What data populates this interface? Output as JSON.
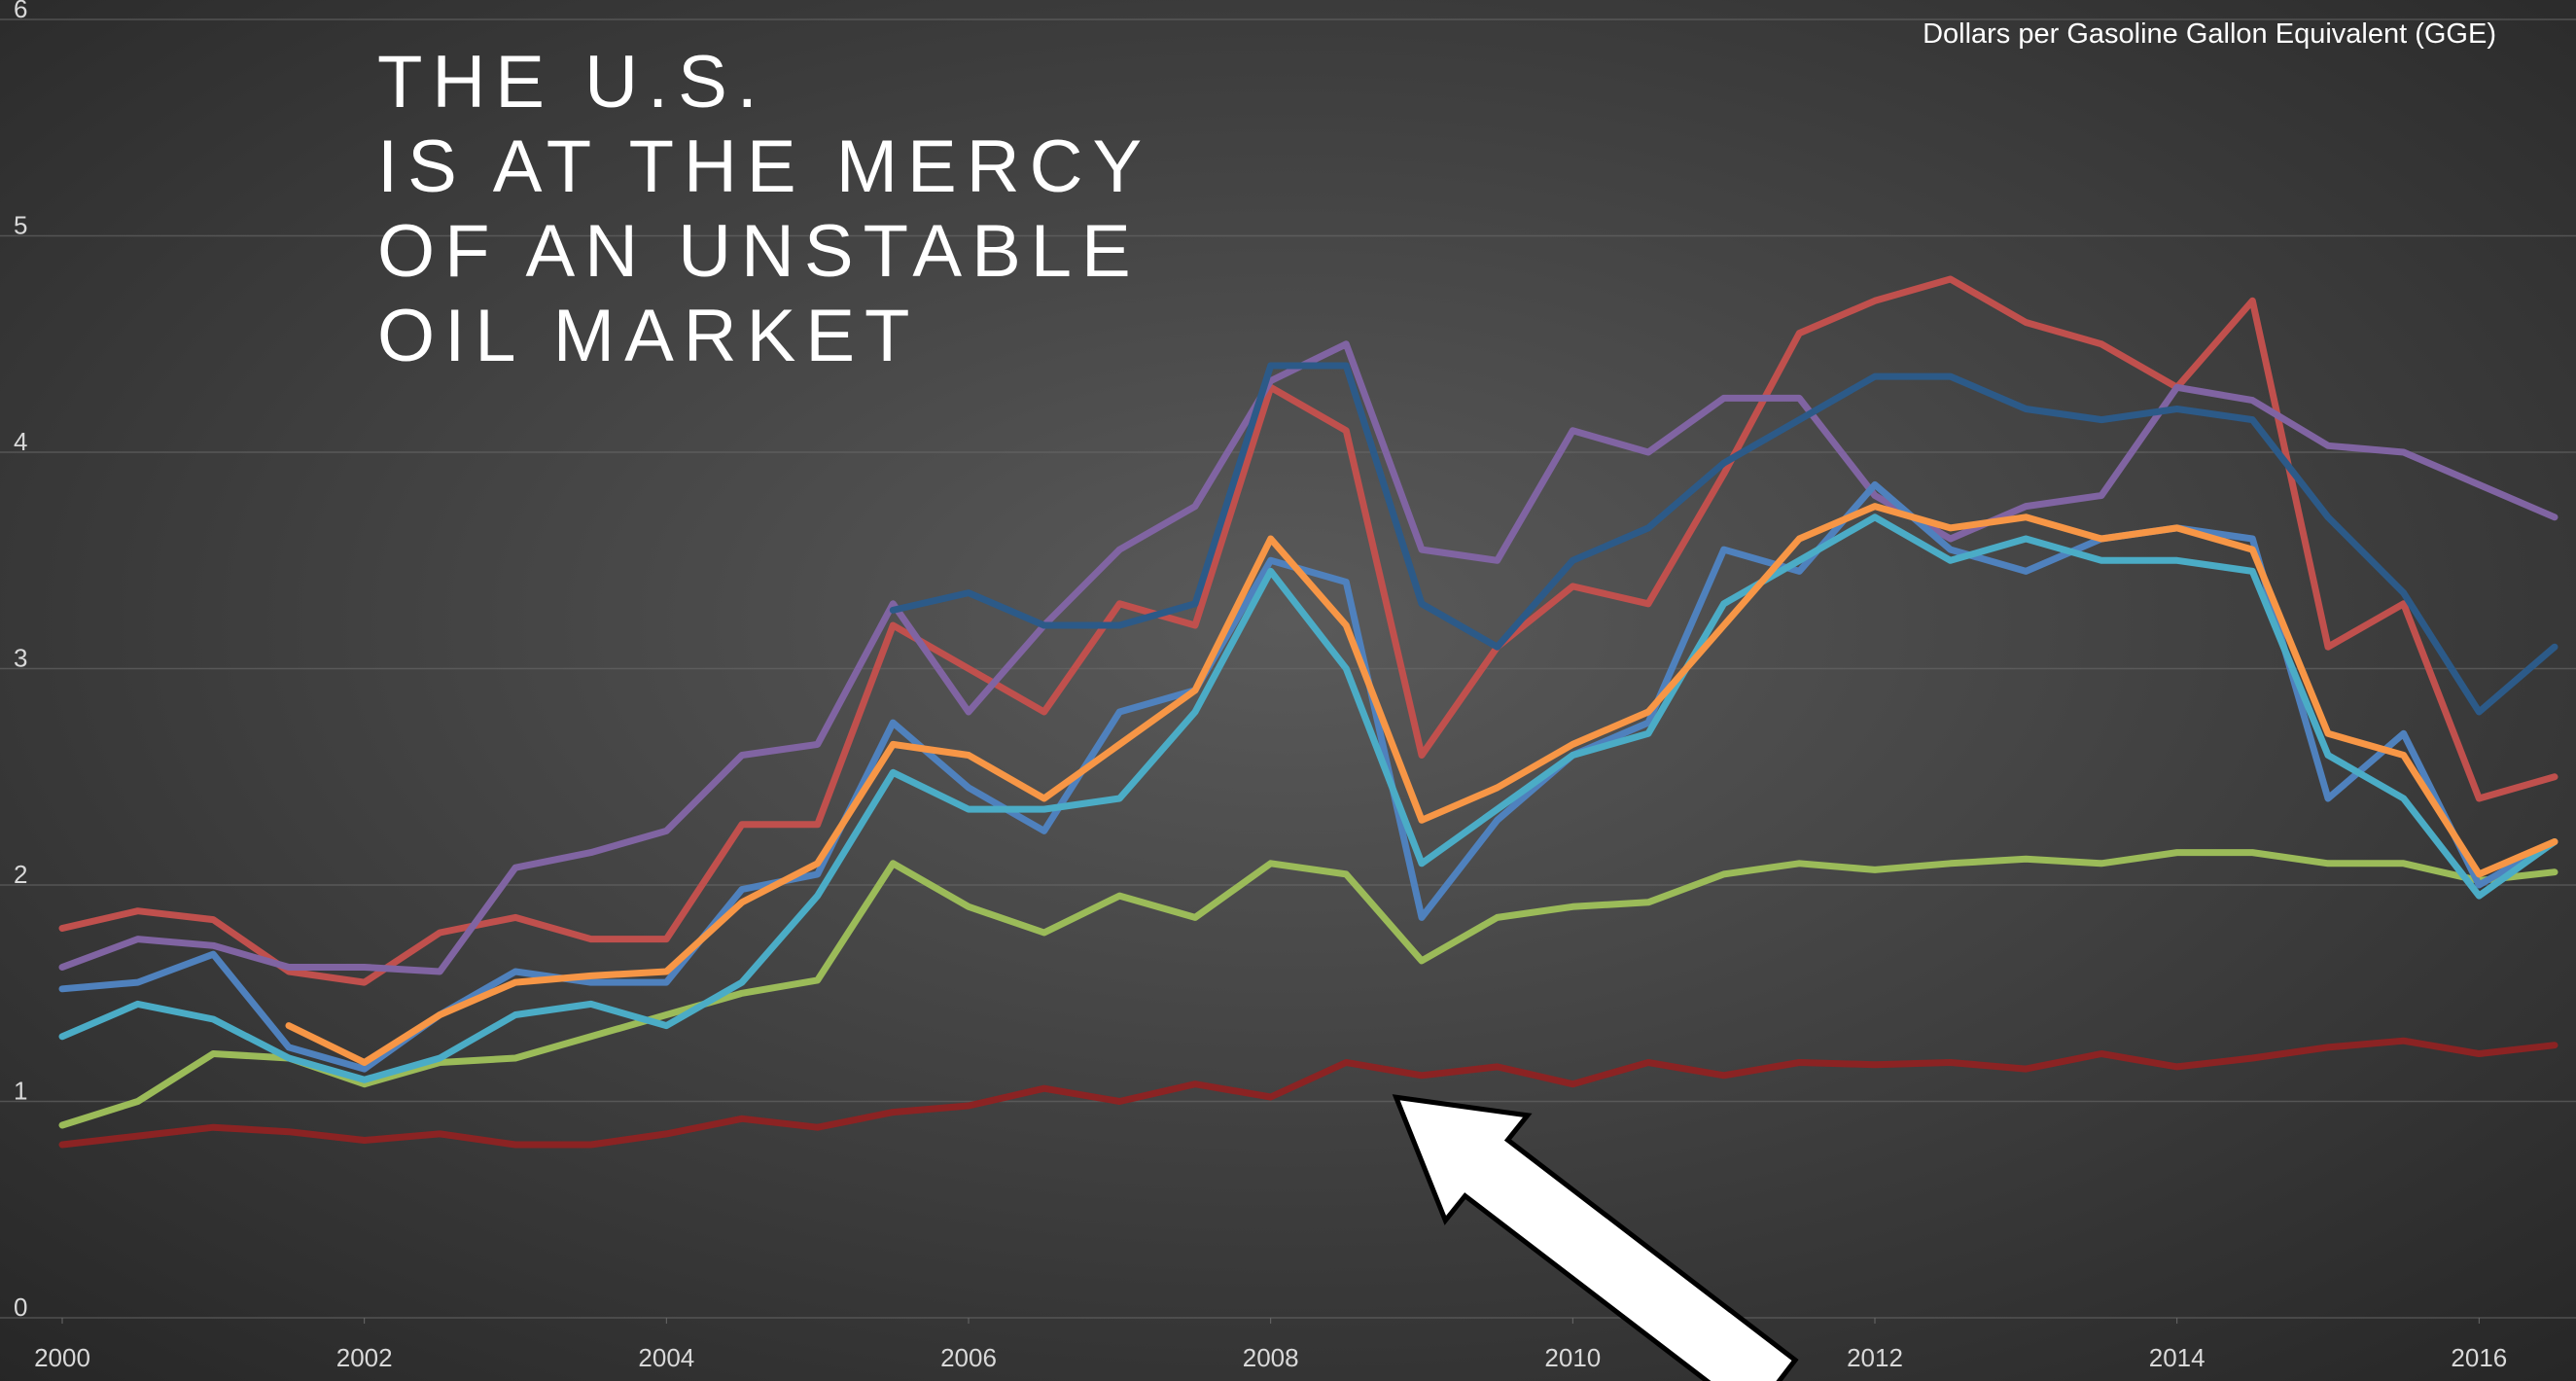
{
  "chart_data": {
    "type": "line",
    "title_lines": [
      "THE U.S.",
      "IS AT THE MERCY",
      "OF AN  UNSTABLE",
      "OIL MARKET"
    ],
    "subtitle": "Dollars per Gasoline Gallon Equivalent (GGE)",
    "x": [
      2000,
      2000.5,
      2001,
      2001.5,
      2002,
      2002.5,
      2003,
      2003.5,
      2004,
      2004.5,
      2005,
      2005.5,
      2006,
      2006.5,
      2007,
      2007.5,
      2008,
      2008.5,
      2009,
      2009.5,
      2010,
      2010.5,
      2011,
      2011.5,
      2012,
      2012.5,
      2013,
      2013.5,
      2014,
      2014.5,
      2015,
      2015.5,
      2016,
      2016.5
    ],
    "xlim": [
      2000,
      2016.5
    ],
    "xticks": [
      2000,
      2002,
      2004,
      2006,
      2008,
      2010,
      2012,
      2014,
      2016
    ],
    "ylim": [
      0,
      6
    ],
    "yticks": [
      0,
      1,
      2,
      3,
      4,
      5,
      6
    ],
    "grid": true,
    "series": [
      {
        "color": "#8b2323",
        "values": [
          0.8,
          0.84,
          0.88,
          0.86,
          0.82,
          0.85,
          0.8,
          0.8,
          0.85,
          0.92,
          0.88,
          0.95,
          0.98,
          1.06,
          1.0,
          1.08,
          1.02,
          1.18,
          1.12,
          1.16,
          1.08,
          1.18,
          1.12,
          1.18,
          1.17,
          1.18,
          1.15,
          1.22,
          1.16,
          1.2,
          1.25,
          1.28,
          1.22,
          1.26
        ]
      },
      {
        "color": "#9bbb59",
        "values": [
          0.89,
          1.0,
          1.22,
          1.2,
          1.08,
          1.18,
          1.2,
          1.3,
          1.4,
          1.5,
          1.56,
          2.1,
          1.9,
          1.78,
          1.95,
          1.85,
          2.1,
          2.05,
          1.65,
          1.85,
          1.9,
          1.92,
          2.05,
          2.1,
          2.07,
          2.1,
          2.12,
          2.1,
          2.15,
          2.15,
          2.1,
          2.1,
          2.02,
          2.06
        ]
      },
      {
        "color": "#c0504d",
        "values": [
          1.8,
          1.88,
          1.84,
          1.6,
          1.55,
          1.78,
          1.85,
          1.75,
          1.75,
          2.28,
          2.28,
          3.2,
          3.0,
          2.8,
          3.3,
          3.2,
          4.3,
          4.1,
          2.6,
          3.1,
          3.38,
          3.3,
          3.9,
          4.55,
          4.7,
          4.8,
          4.6,
          4.5,
          4.3,
          4.7,
          3.1,
          3.3,
          2.4,
          2.5
        ]
      },
      {
        "color": "#8064a2",
        "values": [
          1.62,
          1.75,
          1.72,
          1.62,
          1.62,
          1.6,
          2.08,
          2.15,
          2.25,
          2.6,
          2.65,
          3.3,
          2.8,
          3.2,
          3.55,
          3.75,
          4.33,
          4.5,
          3.55,
          3.5,
          4.1,
          4.0,
          4.25,
          4.25,
          3.8,
          3.6,
          3.75,
          3.8,
          4.3,
          4.24,
          4.03,
          4.0,
          3.85,
          3.7
        ]
      },
      {
        "color": "#2c5a88",
        "values": [
          null,
          null,
          null,
          null,
          null,
          null,
          null,
          null,
          null,
          null,
          null,
          3.27,
          3.35,
          3.2,
          3.2,
          3.3,
          4.4,
          4.4,
          3.3,
          3.1,
          3.5,
          3.65,
          3.95,
          4.15,
          4.35,
          4.35,
          4.2,
          4.15,
          4.2,
          4.15,
          3.7,
          3.35,
          2.8,
          3.1
        ]
      },
      {
        "color": "#4f81bd",
        "values": [
          1.52,
          1.55,
          1.68,
          1.25,
          1.15,
          1.4,
          1.6,
          1.55,
          1.55,
          1.98,
          2.05,
          2.75,
          2.45,
          2.25,
          2.8,
          2.9,
          3.5,
          3.4,
          1.85,
          2.3,
          2.6,
          2.75,
          3.55,
          3.45,
          3.85,
          3.55,
          3.45,
          3.6,
          3.65,
          3.6,
          2.4,
          2.7,
          2.0,
          2.2
        ]
      },
      {
        "color": "#4bacc6",
        "values": [
          1.3,
          1.45,
          1.38,
          1.2,
          1.1,
          1.2,
          1.4,
          1.45,
          1.35,
          1.55,
          1.95,
          2.52,
          2.35,
          2.35,
          2.4,
          2.8,
          3.45,
          3.0,
          2.1,
          2.35,
          2.6,
          2.7,
          3.3,
          3.5,
          3.7,
          3.5,
          3.6,
          3.5,
          3.5,
          3.45,
          2.6,
          2.4,
          1.95,
          2.2
        ]
      },
      {
        "color": "#f79646",
        "values": [
          null,
          null,
          null,
          1.35,
          1.18,
          1.4,
          1.55,
          1.58,
          1.6,
          1.92,
          2.1,
          2.65,
          2.6,
          2.4,
          2.65,
          2.9,
          3.6,
          3.2,
          2.3,
          2.45,
          2.65,
          2.8,
          3.2,
          3.6,
          3.75,
          3.65,
          3.7,
          3.6,
          3.65,
          3.55,
          2.7,
          2.6,
          2.05,
          2.2
        ]
      }
    ]
  }
}
